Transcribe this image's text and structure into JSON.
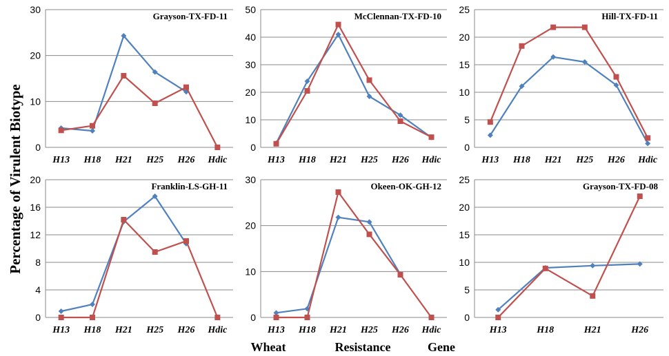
{
  "figure": {
    "ylabel": "Percentage   of   Virulent   Biotype",
    "xlabel_words": [
      "Wheat",
      "Resistance",
      "Gene"
    ],
    "colors": {
      "blue_series": "#4f81bd",
      "red_series": "#c0504d",
      "grid": "#888888"
    }
  },
  "chart_data": [
    {
      "type": "line",
      "title": "Grayson-TX-FD-11",
      "categories": [
        "H13",
        "H18",
        "H21",
        "H25",
        "H26",
        "Hdic"
      ],
      "yticks": [
        0,
        10,
        20,
        30
      ],
      "ylim": [
        0,
        30
      ],
      "grid": true,
      "series": [
        {
          "color": "#4f81bd",
          "marker": "diamond",
          "values": [
            4.2,
            3.6,
            24.3,
            16.4,
            12.1,
            null
          ]
        },
        {
          "color": "#c0504d",
          "marker": "square",
          "values": [
            3.7,
            4.7,
            15.6,
            9.6,
            13.1,
            0
          ]
        }
      ]
    },
    {
      "type": "line",
      "title": "McClennan-TX-FD-10",
      "categories": [
        "H13",
        "H18",
        "H21",
        "H25",
        "H26",
        "Hdic"
      ],
      "yticks": [
        0,
        10,
        20,
        30,
        40,
        50
      ],
      "ylim": [
        0,
        50
      ],
      "grid": true,
      "series": [
        {
          "color": "#4f81bd",
          "marker": "diamond",
          "values": [
            1.5,
            24,
            41,
            18.5,
            11.7,
            3.6
          ]
        },
        {
          "color": "#c0504d",
          "marker": "square",
          "values": [
            1.3,
            20.5,
            44.6,
            24.4,
            9.5,
            3.7
          ]
        }
      ]
    },
    {
      "type": "line",
      "title": "Hill-TX-FD-11",
      "categories": [
        "H13",
        "H18",
        "H21",
        "H25",
        "H26",
        "Hdic"
      ],
      "yticks": [
        0,
        5,
        10,
        15,
        20,
        25
      ],
      "ylim": [
        0,
        25
      ],
      "grid": true,
      "series": [
        {
          "color": "#4f81bd",
          "marker": "diamond",
          "values": [
            2.2,
            11.1,
            16.4,
            15.5,
            11.3,
            0.7
          ]
        },
        {
          "color": "#c0504d",
          "marker": "square",
          "values": [
            4.6,
            18.4,
            21.8,
            21.8,
            12.8,
            1.7
          ]
        }
      ]
    },
    {
      "type": "line",
      "title": "Franklin-LS-GH-11",
      "categories": [
        "H13",
        "H18",
        "H21",
        "H25",
        "H26",
        "Hdic"
      ],
      "yticks": [
        0,
        4,
        8,
        12,
        16,
        20
      ],
      "ylim": [
        0,
        20
      ],
      "grid": true,
      "series": [
        {
          "color": "#4f81bd",
          "marker": "diamond",
          "values": [
            0.9,
            1.9,
            13.9,
            17.6,
            10.7,
            null
          ]
        },
        {
          "color": "#c0504d",
          "marker": "square",
          "values": [
            0,
            0,
            14.2,
            9.5,
            11.1,
            0
          ]
        }
      ]
    },
    {
      "type": "line",
      "title": "Okeen-OK-GH-12",
      "categories": [
        "H13",
        "H18",
        "H21",
        "H25",
        "H26",
        "Hdic"
      ],
      "yticks": [
        0,
        10,
        20,
        30
      ],
      "ylim": [
        0,
        30
      ],
      "grid": true,
      "series": [
        {
          "color": "#4f81bd",
          "marker": "diamond",
          "values": [
            1,
            1.9,
            21.8,
            20.8,
            9.4,
            null
          ]
        },
        {
          "color": "#c0504d",
          "marker": "square",
          "values": [
            0,
            0,
            27.3,
            18.1,
            9.3,
            0
          ]
        }
      ]
    },
    {
      "type": "line",
      "title": "Grayson-TX-FD-08",
      "categories": [
        "H13",
        "H18",
        "H21",
        "H26"
      ],
      "yticks": [
        0,
        5,
        10,
        15,
        20,
        25
      ],
      "ylim": [
        0,
        25
      ],
      "grid": true,
      "series": [
        {
          "color": "#4f81bd",
          "marker": "diamond",
          "values": [
            1.4,
            9,
            9.4,
            9.7
          ]
        },
        {
          "color": "#c0504d",
          "marker": "square",
          "values": [
            0,
            8.9,
            3.9,
            22
          ]
        }
      ]
    }
  ]
}
